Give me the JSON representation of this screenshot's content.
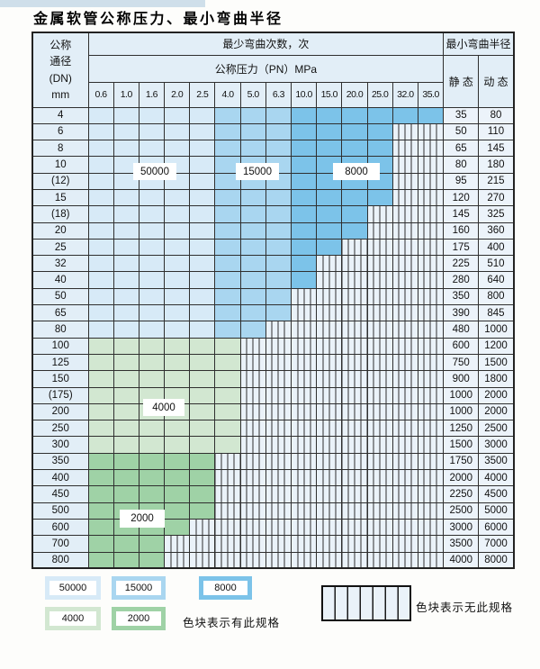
{
  "page": {
    "title": "金属软管公称压力、最小弯曲半径"
  },
  "table": {
    "dn_header_lines": [
      "公称",
      "通径",
      "(DN)",
      "mm"
    ],
    "cycles_header": "最少弯曲次数，次",
    "pressure_header": "公称压力（PN）MPa",
    "radius_header": "最小弯曲半径",
    "static_header": "静 态",
    "dynamic_header": "动 态",
    "pressure_columns": [
      "0.6",
      "1.0",
      "1.6",
      "2.0",
      "2.5",
      "4.0",
      "5.0",
      "6.3",
      "10.0",
      "15.0",
      "20.0",
      "25.0",
      "32.0",
      "35.0"
    ],
    "band_columns": {
      "b1": [
        "0.6",
        "1.0",
        "1.6",
        "2.0",
        "2.5"
      ],
      "b2": [
        "4.0",
        "5.0",
        "6.3"
      ],
      "b3": [
        "10.0",
        "15.0",
        "20.0",
        "25.0",
        "32.0",
        "35.0"
      ]
    },
    "rows": [
      {
        "dn": "4",
        "colored": 14,
        "zone": "blue",
        "static": "35",
        "dynamic": "80"
      },
      {
        "dn": "6",
        "colored": 12,
        "zone": "blue",
        "static": "50",
        "dynamic": "110"
      },
      {
        "dn": "8",
        "colored": 12,
        "zone": "blue",
        "static": "65",
        "dynamic": "145"
      },
      {
        "dn": "10",
        "colored": 12,
        "zone": "blue",
        "static": "80",
        "dynamic": "180"
      },
      {
        "dn": "(12)",
        "colored": 12,
        "zone": "blue",
        "static": "95",
        "dynamic": "215"
      },
      {
        "dn": "15",
        "colored": 12,
        "zone": "blue",
        "static": "120",
        "dynamic": "270"
      },
      {
        "dn": "(18)",
        "colored": 11,
        "zone": "blue",
        "static": "145",
        "dynamic": "325"
      },
      {
        "dn": "20",
        "colored": 11,
        "zone": "blue",
        "static": "160",
        "dynamic": "360"
      },
      {
        "dn": "25",
        "colored": 10,
        "zone": "blue",
        "static": "175",
        "dynamic": "400"
      },
      {
        "dn": "32",
        "colored": 9,
        "zone": "blue",
        "static": "225",
        "dynamic": "510"
      },
      {
        "dn": "40",
        "colored": 9,
        "zone": "blue",
        "static": "280",
        "dynamic": "640"
      },
      {
        "dn": "50",
        "colored": 8,
        "zone": "blue",
        "static": "350",
        "dynamic": "800"
      },
      {
        "dn": "65",
        "colored": 8,
        "zone": "blue",
        "static": "390",
        "dynamic": "845"
      },
      {
        "dn": "80",
        "colored": 7,
        "zone": "blue",
        "static": "480",
        "dynamic": "1000"
      },
      {
        "dn": "100",
        "colored": 6,
        "zone": "g1",
        "static": "600",
        "dynamic": "1200"
      },
      {
        "dn": "125",
        "colored": 6,
        "zone": "g1",
        "static": "750",
        "dynamic": "1500"
      },
      {
        "dn": "150",
        "colored": 6,
        "zone": "g1",
        "static": "900",
        "dynamic": "1800"
      },
      {
        "dn": "(175)",
        "colored": 6,
        "zone": "g1",
        "static": "1000",
        "dynamic": "2000"
      },
      {
        "dn": "200",
        "colored": 6,
        "zone": "g1",
        "static": "1000",
        "dynamic": "2000"
      },
      {
        "dn": "250",
        "colored": 6,
        "zone": "g1",
        "static": "1250",
        "dynamic": "2500"
      },
      {
        "dn": "300",
        "colored": 6,
        "zone": "g1",
        "static": "1500",
        "dynamic": "3000"
      },
      {
        "dn": "350",
        "colored": 5,
        "zone": "g2",
        "static": "1750",
        "dynamic": "3500"
      },
      {
        "dn": "400",
        "colored": 5,
        "zone": "g2",
        "static": "2000",
        "dynamic": "4000"
      },
      {
        "dn": "450",
        "colored": 5,
        "zone": "g2",
        "static": "2250",
        "dynamic": "4500"
      },
      {
        "dn": "500",
        "colored": 5,
        "zone": "g2",
        "static": "2500",
        "dynamic": "5000"
      },
      {
        "dn": "600",
        "colored": 4,
        "zone": "g2",
        "static": "3000",
        "dynamic": "6000"
      },
      {
        "dn": "700",
        "colored": 3,
        "zone": "g2",
        "static": "3500",
        "dynamic": "7000"
      },
      {
        "dn": "800",
        "colored": 3,
        "zone": "g2",
        "static": "4000",
        "dynamic": "8000"
      }
    ]
  },
  "overlays": {
    "l50000": "50000",
    "l15000": "15000",
    "l8000": "8000",
    "l4000": "4000",
    "l2000": "2000"
  },
  "legend": {
    "items": [
      {
        "label": "50000",
        "band": "b1"
      },
      {
        "label": "15000",
        "band": "b2"
      },
      {
        "label": "8000",
        "band": "b3"
      },
      {
        "label": "4000",
        "band": "g1"
      },
      {
        "label": "2000",
        "band": "g2"
      }
    ],
    "has_spec_text": "色块表示有此规格",
    "no_spec_text": "色块表示无此规格"
  },
  "colors": {
    "band_50000": "#d7eaf7",
    "band_15000": "#a9d6f0",
    "band_8000": "#7cc3e9",
    "band_4000": "#d2e7d1",
    "band_2000": "#9fd2a6",
    "stripe_bg": "#eaf2f9",
    "header_bg": "#e2eef7",
    "value_bg": "#ecf3fa",
    "grid": "#2f2f2f",
    "top_strip": "#cfdfea"
  }
}
